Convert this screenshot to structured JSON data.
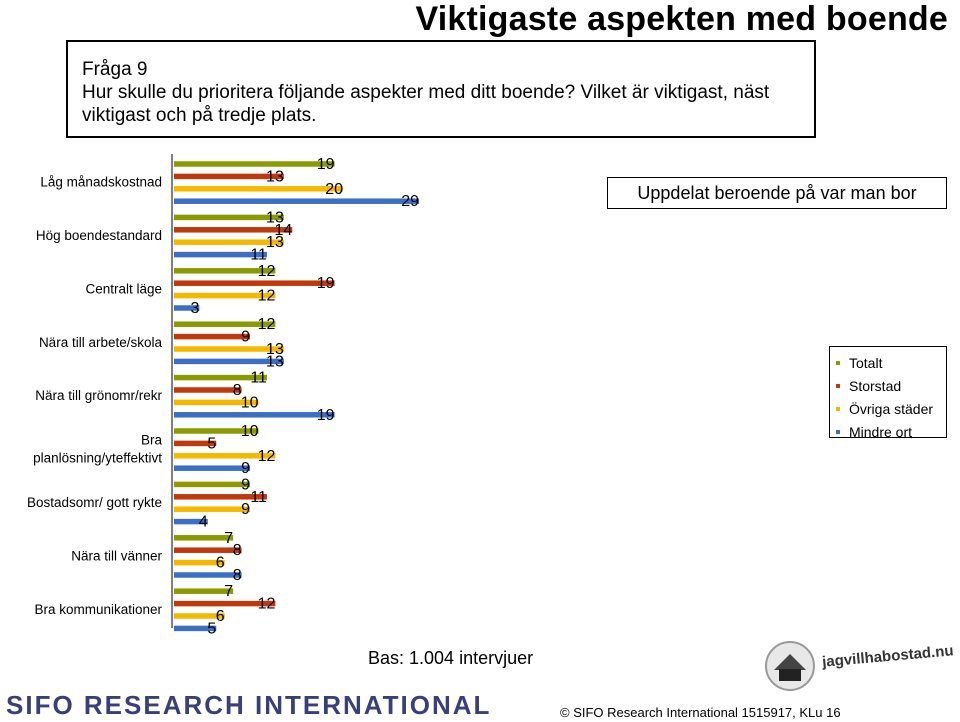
{
  "title": "Viktigaste aspekten med boende",
  "question": {
    "label": "Fråga 9",
    "text": "Hur skulle du prioritera följande aspekter med ditt boende? Vilket är viktigast, näst viktigast och på tredje plats."
  },
  "subtitle": "Uppdelat beroende på var man bor",
  "base_note": "Bas: 1.004 intervjuer",
  "footer": {
    "company": "SIFO RESEARCH INTERNATIONAL",
    "copyright": "©  SIFO Research International 1515917, KLu 16",
    "logo_text": "jagvillhabostad.nu"
  },
  "colors": {
    "Totalt": "#8a9a00",
    "Storstad": "#c0390b",
    "Övriga städer": "#f5b800",
    "Mindre ort": "#3a6fc4"
  },
  "chart_data": {
    "type": "bar",
    "orientation": "horizontal",
    "categories": [
      "Låg månadskostnad",
      "Hög boendestandard",
      "Centralt läge",
      "Nära till arbete/skola",
      "Nära till grönomr/rekr",
      "Bra planlösning/yteffektivt",
      "Bostadsomr/ gott rykte",
      "Nära till vänner",
      "Bra kommunikationer"
    ],
    "series": [
      {
        "name": "Totalt",
        "values": [
          19,
          13,
          12,
          12,
          11,
          10,
          9,
          7,
          7
        ]
      },
      {
        "name": "Storstad",
        "values": [
          13,
          14,
          19,
          9,
          8,
          5,
          11,
          8,
          12
        ]
      },
      {
        "name": "Övriga städer",
        "values": [
          20,
          13,
          12,
          13,
          10,
          12,
          9,
          6,
          6
        ]
      },
      {
        "name": "Mindre ort",
        "values": [
          29,
          11,
          3,
          13,
          19,
          9,
          4,
          8,
          5
        ]
      }
    ],
    "legend_position": "right",
    "grid": false
  }
}
